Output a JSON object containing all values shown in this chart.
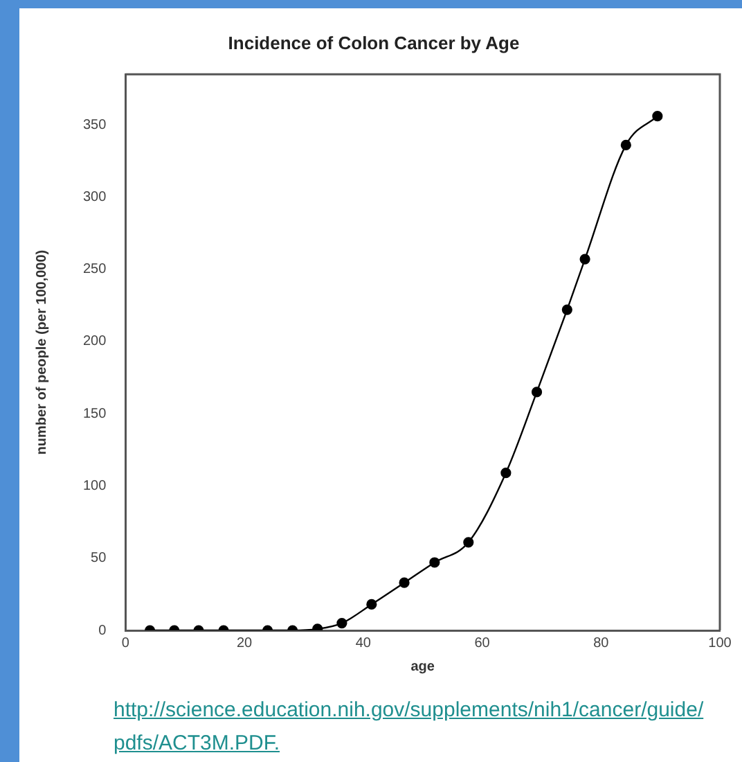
{
  "chart_data": {
    "type": "line",
    "title": "Incidence of Colon Cancer by Age",
    "xlabel": "age",
    "ylabel": "number of people (per 100,000)",
    "x": [
      4.1,
      8.2,
      12.3,
      16.5,
      23.9,
      28.1,
      32.3,
      36.4,
      41.4,
      46.9,
      52,
      57.7,
      64,
      69.2,
      74.3,
      77.3,
      84.2,
      89.5
    ],
    "values": [
      0,
      0,
      0,
      0,
      0,
      0,
      1,
      5,
      18,
      33,
      47,
      61,
      109,
      165,
      222,
      257,
      336,
      356
    ],
    "color": "#000000",
    "marker": "circle",
    "line_style": "solid",
    "grid": false,
    "legend": false,
    "xlim": [
      0,
      100
    ],
    "xticks": [
      0,
      20,
      40,
      60,
      80,
      100
    ],
    "ylim": [
      0,
      385
    ],
    "yticks": [
      0,
      50,
      100,
      150,
      200,
      250,
      300,
      350
    ],
    "annotations": [
      "http://science.education.nih.gov/supplements/nih1/cancer/guide/pdfs/ACT3M.PDF."
    ]
  }
}
